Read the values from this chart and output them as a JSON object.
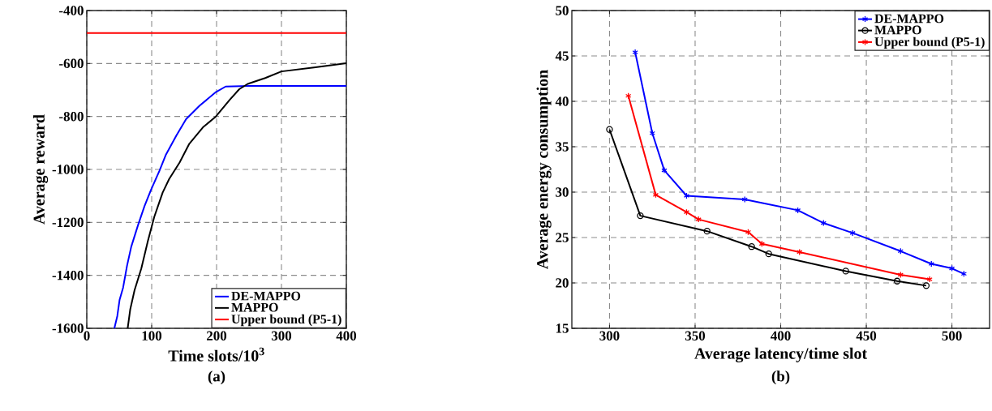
{
  "chart_data": [
    {
      "type": "line",
      "xlabel": "Time slots/10$^{3}$",
      "ylabel": "Average reward",
      "xlim": [
        0,
        400
      ],
      "ylim": [
        -1600,
        -400
      ],
      "xticks": [
        0,
        100,
        200,
        300,
        400
      ],
      "yticks": [
        -1600,
        -1400,
        -1200,
        -1000,
        -800,
        -600,
        -400
      ],
      "grid": true,
      "legend": "bottom right",
      "annotations": [
        "(a)"
      ],
      "series": [
        {
          "name": "DE-MAPPO",
          "color": "#0000ff",
          "x": [
            42.5,
            47,
            50.6,
            56,
            62,
            68.5,
            79,
            89,
            99,
            112,
            122,
            138,
            153,
            174,
            199,
            214,
            250,
            300,
            350,
            400
          ],
          "values": [
            -1600,
            -1554,
            -1492,
            -1446,
            -1364,
            -1292,
            -1210,
            -1138,
            -1077,
            -1005,
            -944,
            -872,
            -810,
            -759,
            -708,
            -687,
            -685,
            -685,
            -685,
            -685
          ]
        },
        {
          "name": "MAPPO",
          "color": "#000000",
          "x": [
            63,
            67,
            73.6,
            84,
            94,
            104,
            117,
            127,
            143,
            158,
            179,
            199,
            220,
            235,
            248,
            275,
            300,
            350,
            400
          ],
          "values": [
            -1600,
            -1528,
            -1456,
            -1374,
            -1272,
            -1179,
            -1087,
            -1036,
            -974,
            -903,
            -841,
            -800,
            -738,
            -697,
            -677,
            -655,
            -630,
            -615,
            -599
          ]
        },
        {
          "name": "Upper bound (P5-1)",
          "color": "#ff0000",
          "x": [
            0,
            400
          ],
          "values": [
            -485,
            -485
          ]
        }
      ]
    },
    {
      "type": "line",
      "xlabel": "Average latency/time slot",
      "ylabel": "Average energy consumption",
      "xlim": [
        278,
        522
      ],
      "ylim": [
        15,
        50
      ],
      "xticks": [
        300,
        350,
        400,
        450,
        500
      ],
      "yticks": [
        15,
        20,
        25,
        30,
        35,
        40,
        45,
        50
      ],
      "grid": true,
      "legend": "top right",
      "annotations": [
        "(b)"
      ],
      "series": [
        {
          "name": "DE-MAPPO",
          "color": "#0000ff",
          "marker": "cross",
          "x": [
            315,
            325,
            332,
            345,
            379,
            410,
            425,
            442,
            470,
            488,
            500,
            507
          ],
          "values": [
            45.4,
            36.5,
            32.4,
            29.6,
            29.2,
            28.0,
            26.6,
            25.5,
            23.5,
            22.1,
            21.6,
            21.0
          ]
        },
        {
          "name": "MAPPO",
          "color": "#000000",
          "marker": "circle",
          "x": [
            300,
            318,
            357,
            383,
            393,
            438,
            468,
            485
          ],
          "values": [
            36.9,
            27.4,
            25.7,
            24.0,
            23.2,
            21.3,
            20.2,
            19.7
          ]
        },
        {
          "name": "Upper bound (P5-1)",
          "color": "#ff0000",
          "marker": "cross",
          "x": [
            311,
            327,
            345,
            352,
            381,
            389,
            411,
            470,
            487
          ],
          "values": [
            40.6,
            29.7,
            27.8,
            27.0,
            25.6,
            24.3,
            23.4,
            20.9,
            20.4
          ]
        }
      ]
    }
  ]
}
